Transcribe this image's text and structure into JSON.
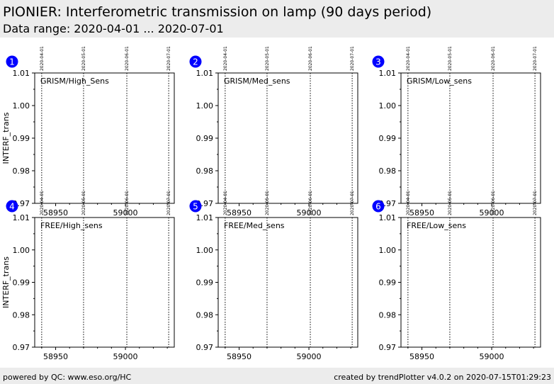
{
  "header": {
    "title": "PIONIER: Interferometric transmission on lamp (90 days period)",
    "subtitle": "Data range: 2020-04-01 ... 2020-07-01"
  },
  "footer": {
    "left": "powered by QC: www.eso.org/HC",
    "right": "created by trendPlotter v4.0.2 on 2020-07-15T01:29:23"
  },
  "colors": {
    "header_bg": "#ececec",
    "badge": "#0000ff",
    "axis": "#000000"
  },
  "chart_data": {
    "type": "scatter",
    "ylabel": "INTERF_trans",
    "ylim": [
      0.97,
      1.01
    ],
    "xlim": [
      58935,
      59035
    ],
    "xticks": [
      58950,
      59000
    ],
    "yticks": [
      0.97,
      0.98,
      0.99,
      1.0,
      1.01
    ],
    "ytick_labels": [
      "0.97",
      "0.98",
      "0.99",
      "1.00",
      "1.01"
    ],
    "date_markers": [
      {
        "mjd": 58940,
        "label": "2020-04-01"
      },
      {
        "mjd": 58970,
        "label": "2020-05-01"
      },
      {
        "mjd": 59001,
        "label": "2020-06-01"
      },
      {
        "mjd": 59031,
        "label": "2020-07-01"
      }
    ],
    "panels": [
      {
        "badge": "1",
        "label": "GRISM/High_Sens",
        "points": []
      },
      {
        "badge": "2",
        "label": "GRISM/Med_sens",
        "points": []
      },
      {
        "badge": "3",
        "label": "GRISM/Low_sens",
        "points": []
      },
      {
        "badge": "4",
        "label": "FREE/High_sens",
        "points": []
      },
      {
        "badge": "5",
        "label": "FREE/Med_sens",
        "points": []
      },
      {
        "badge": "6",
        "label": "FREE/Low_sens",
        "points": []
      }
    ]
  }
}
